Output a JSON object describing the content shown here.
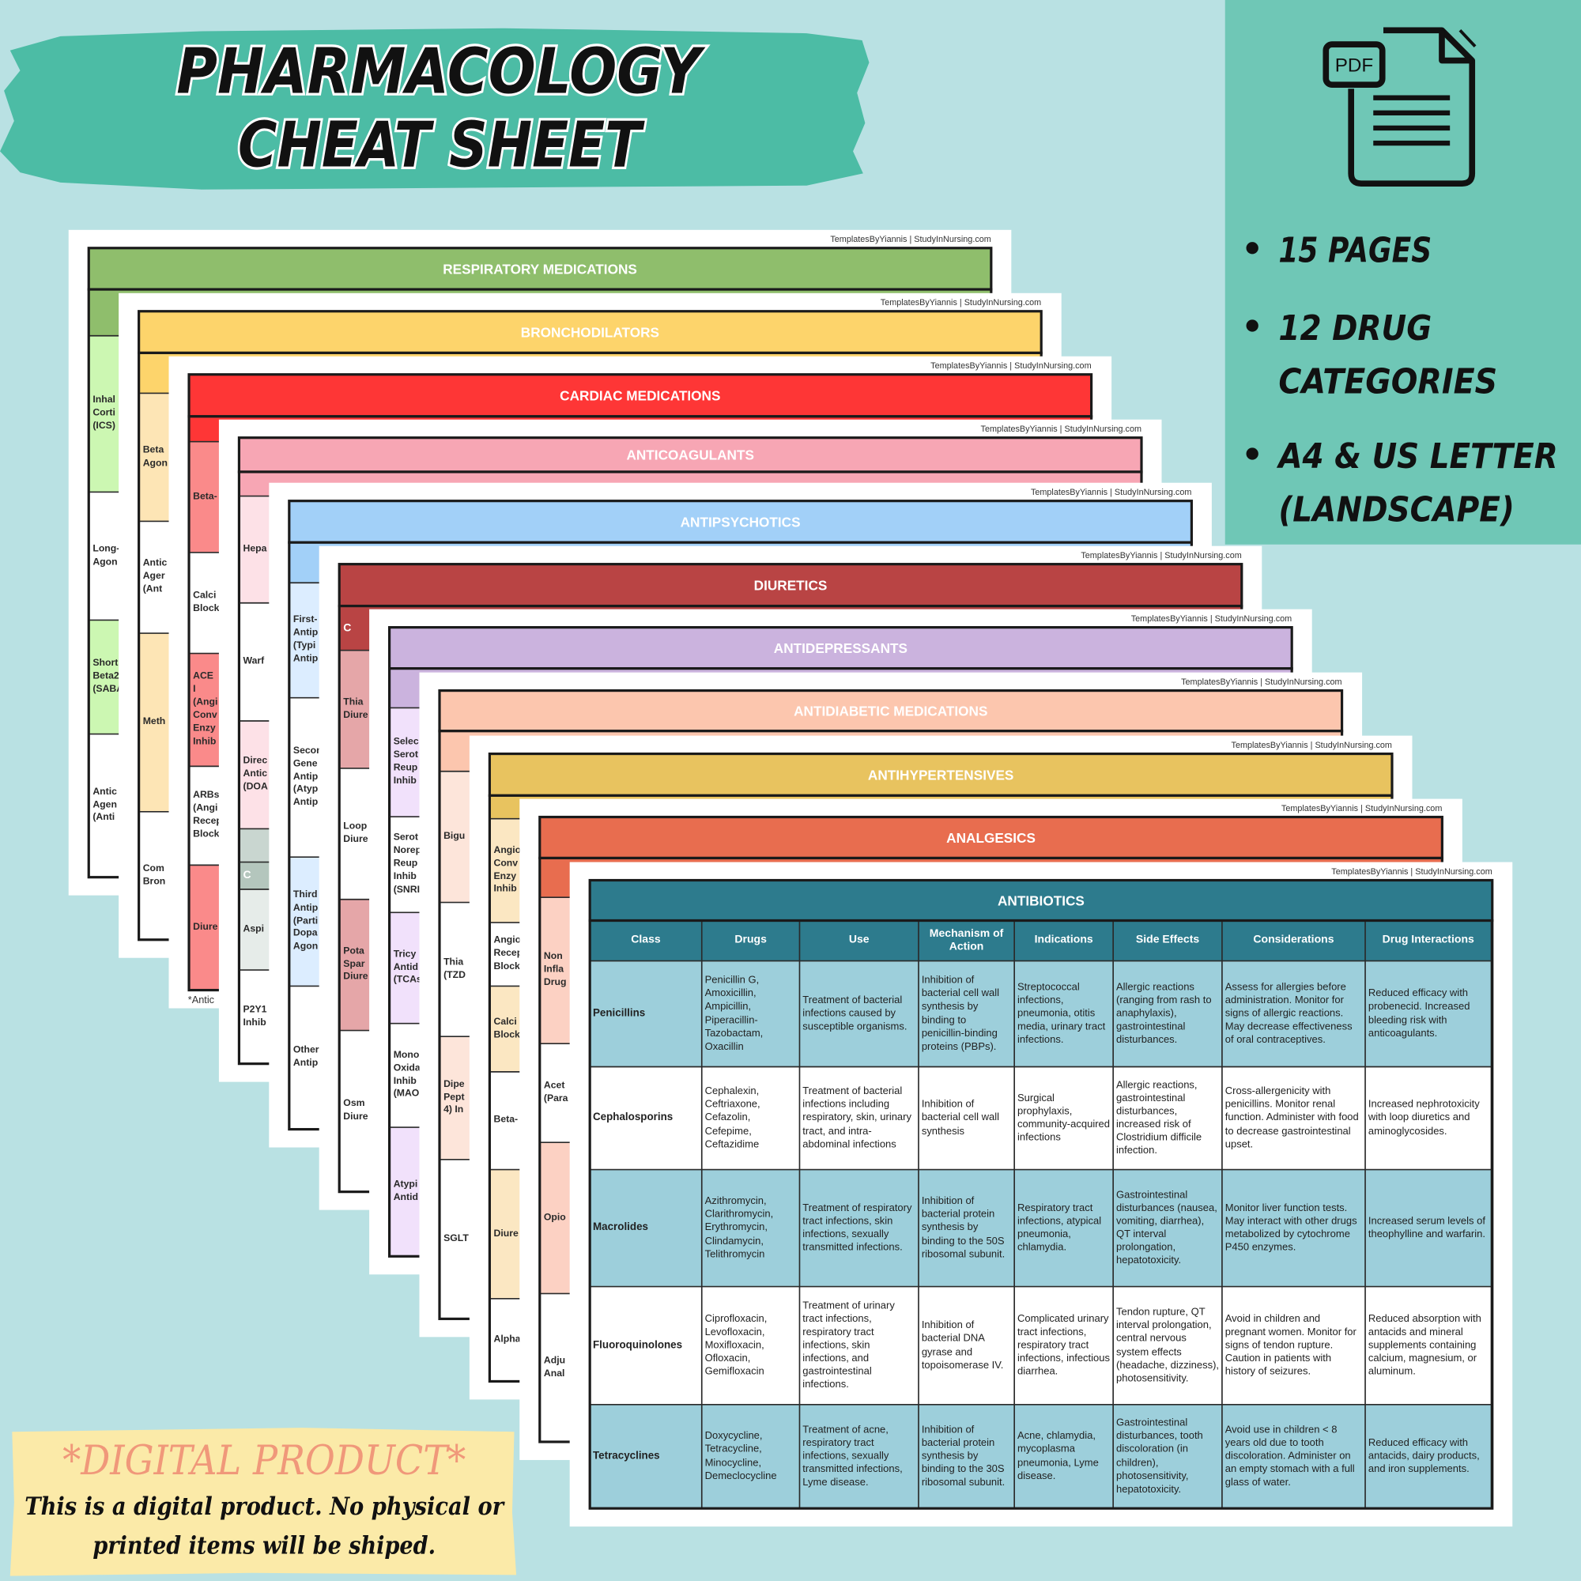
{
  "header": {
    "title_lines": [
      "PHARMACOLOGY",
      "CHEAT SHEET"
    ]
  },
  "features": {
    "icon_label": "PDF",
    "bullet_lines": [
      "15 PAGES",
      "12 DRUG",
      "CATEGORIES",
      "A4 & US LETTER",
      "(LANDSCAPE)"
    ]
  },
  "sheets": [
    {
      "credit": "TemplatesByYiannis | StudyInNursing.com",
      "title": "RESPIRATORY MEDICATIONS",
      "side_labels": [
        "Inhal Corti (ICS)",
        "Long- Agon",
        "Short Beta2 (SABA",
        "Antic Agen (Anti"
      ]
    },
    {
      "credit": "TemplatesByYiannis | StudyInNursing.com",
      "title": "BRONCHODILATORS",
      "side_labels": [
        "Beta Agon",
        "Antic Ager (Ant",
        "Meth",
        "Com Bron"
      ]
    },
    {
      "credit": "TemplatesByYiannis | StudyInNursing.com",
      "title": "CARDIAC MEDICATIONS",
      "side_labels": [
        "Beta-",
        "Calci Block",
        "ACE I (Angi Conv Enzy Inhib",
        "ARBs (Angi Recep Block",
        "Diure"
      ],
      "footnote": "*Antic"
    },
    {
      "credit": "TemplatesByYiannis | StudyInNursing.com",
      "title": "ANTICOAGULANTS",
      "side_labels": [
        "Hepa",
        "Warf",
        "Direc Antic (DOA",
        "C",
        "Aspi",
        "P2Y1 Inhib"
      ]
    },
    {
      "credit": "TemplatesByYiannis | StudyInNursing.com",
      "title": "ANTIPSYCHOTICS",
      "side_labels": [
        "First- Antip (Typi Antip",
        "Secon Gene Antip (Atyp Antip",
        "Third Antip (Parti Dopa Agon",
        "Other Antip"
      ]
    },
    {
      "credit": "TemplatesByYiannis | StudyInNursing.com",
      "title": "DIURETICS",
      "side_labels": [
        "C",
        "Thia Diure",
        "Loop Diure",
        "Pota Spar Diure",
        "Osm Diure"
      ]
    },
    {
      "credit": "TemplatesByYiannis | StudyInNursing.com",
      "title": "ANTIDEPRESSANTS",
      "side_labels": [
        "Selec Serot Reup Inhib",
        "Serot Norep Reup Inhib (SNRI",
        "Tricy Antid (TCAs",
        "Mono Oxida Inhib (MAO",
        "Atypi Antid"
      ]
    },
    {
      "credit": "TemplatesByYiannis | StudyInNursing.com",
      "title": "ANTIDIABETIC MEDICATIONS",
      "side_labels": [
        "Bigu",
        "Thia (TZD",
        "Dipe Pept 4) In",
        "SGLT"
      ]
    },
    {
      "credit": "TemplatesByYiannis | StudyInNursing.com",
      "title": "ANTIHYPERTENSIVES",
      "side_labels": [
        "Angio Conv Enzy Inhib",
        "Angio Recep Block",
        "Calci Block",
        "Beta-",
        "Diure",
        "Alpha"
      ]
    },
    {
      "credit": "TemplatesByYiannis | StudyInNursing.com",
      "title": "ANALGESICS",
      "side_labels": [
        "Non Infla Drug",
        "Acet (Para",
        "Opio",
        "Adju Anal"
      ]
    },
    {
      "credit": "TemplatesByYiannis | StudyInNursing.com",
      "title": "ANTIBIOTICS",
      "table": {
        "columns": [
          "Class",
          "Drugs",
          "Use",
          "Mechanism of Action",
          "Indications",
          "Side Effects",
          "Considerations",
          "Drug Interactions"
        ],
        "rows": [
          [
            "Penicillins",
            "Penicillin G, Amoxicillin, Ampicillin, Piperacillin-Tazobactam, Oxacillin",
            "Treatment of bacterial infections caused by susceptible organisms.",
            "Inhibition of bacterial cell wall synthesis by binding to penicillin-binding proteins (PBPs).",
            "Streptococcal infections, pneumonia, otitis media, urinary tract infections.",
            "Allergic reactions (ranging from rash to anaphylaxis), gastrointestinal disturbances.",
            "Assess for allergies before administration. Monitor for signs of allergic reactions. May decrease effectiveness of oral contraceptives.",
            "Reduced efficacy with probenecid. Increased bleeding risk with anticoagulants."
          ],
          [
            "Cephalosporins",
            "Cephalexin, Ceftriaxone, Cefazolin, Cefepime, Ceftazidime",
            "Treatment of bacterial infections including respiratory, skin, urinary tract, and intra-abdominal infections",
            "Inhibition of bacterial cell wall synthesis",
            "Surgical prophylaxis, community-acquired infections",
            "Allergic reactions, gastrointestinal disturbances, increased risk of Clostridium difficile infection.",
            "Cross-allergenicity with penicillins. Monitor renal function. Administer with food to decrease gastrointestinal upset.",
            "Increased nephrotoxicity with loop diuretics and aminoglycosides."
          ],
          [
            "Macrolides",
            "Azithromycin, Clarithromycin, Erythromycin, Clindamycin, Telithromycin",
            "Treatment of respiratory tract infections, skin infections, sexually transmitted infections.",
            "Inhibition of bacterial protein synthesis by binding to the 50S ribosomal subunit.",
            "Respiratory tract infections, atypical pneumonia, chlamydia.",
            "Gastrointestinal disturbances (nausea, vomiting, diarrhea), QT interval prolongation, hepatotoxicity.",
            "Monitor liver function tests. May interact with other drugs metabolized by cytochrome P450 enzymes.",
            "Increased serum levels of theophylline and warfarin."
          ],
          [
            "Fluoroquinolones",
            "Ciprofloxacin, Levofloxacin, Moxifloxacin, Ofloxacin, Gemifloxacin",
            "Treatment of urinary tract infections, respiratory tract infections, skin infections, and gastrointestinal infections.",
            "Inhibition of bacterial DNA gyrase and topoisomerase IV.",
            "Complicated urinary tract infections, respiratory tract infections, infectious diarrhea.",
            "Tendon rupture, QT interval prolongation, central nervous system effects (headache, dizziness), photosensitivity.",
            "Avoid in children and pregnant women. Monitor for signs of tendon rupture. Caution in patients with history of seizures.",
            "Reduced absorption with antacids and mineral supplements containing calcium, magnesium, or aluminum."
          ],
          [
            "Tetracyclines",
            "Doxycycline, Tetracycline, Minocycline, Demeclocycline",
            "Treatment of acne, respiratory tract infections, sexually transmitted infections, Lyme disease.",
            "Inhibition of bacterial protein synthesis by binding to the 30S ribosomal subunit.",
            "Acne, chlamydia, mycoplasma pneumonia, Lyme disease.",
            "Gastrointestinal disturbances, tooth discoloration (in children), photosensitivity, hepatotoxicity.",
            "Avoid use in children < 8 years old due to tooth discoloration. Administer on an empty stomach with a full glass of water.",
            "Reduced efficacy with antacids, dairy products, and iron supplements."
          ]
        ]
      }
    }
  ],
  "notice": {
    "title": "*DIGITAL PRODUCT*",
    "lines": [
      "This is a digital product. No physical or",
      "printed items will be shiped."
    ]
  }
}
